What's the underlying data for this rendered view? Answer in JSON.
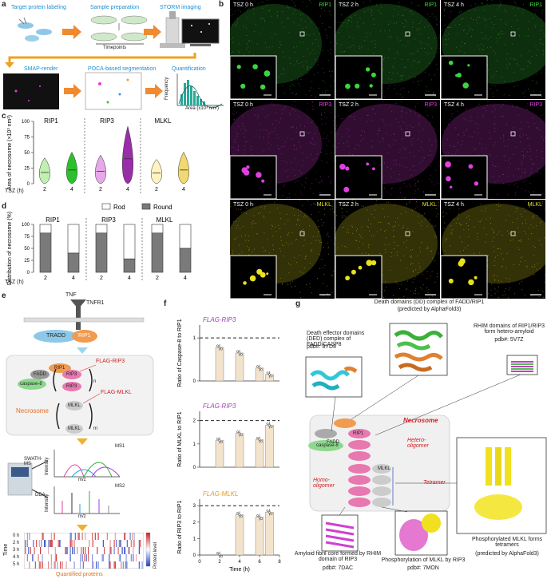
{
  "panel_labels": {
    "a": "a",
    "b": "b",
    "c": "c",
    "d": "d",
    "e": "e",
    "f": "f",
    "g": "g"
  },
  "panel_a": {
    "steps": [
      "Target protein labeling",
      "Sample preparation",
      "STORM imaging"
    ],
    "timepoints_label": "Timepoints",
    "steps2": [
      "SMAP-render",
      "POCA-based segmentation",
      "Quantification"
    ],
    "hist_ylabel": "Frequency",
    "hist_xlabel": "Area (x10³ nm²)"
  },
  "panel_b": {
    "rows": [
      {
        "protein": "RIP1",
        "color": "#3fd43f",
        "times": [
          "TSZ 0 h",
          "TSZ 2 h",
          "TSZ 4 h"
        ]
      },
      {
        "protein": "RIP3",
        "color": "#e040e0",
        "times": [
          "TSZ 0 h",
          "TSZ 2 h",
          "TSZ 4 h"
        ]
      },
      {
        "protein": "MLKL",
        "color": "#e8e020",
        "times": [
          "TSZ 0 h",
          "TSZ 2 h",
          "TSZ 4 h"
        ]
      }
    ]
  },
  "chart_data": [
    {
      "type": "violin",
      "ylabel": "Area of necrosome (×10³ nm²)",
      "xlabel": "TSZ (h)",
      "groups": [
        "RIP1",
        "RIP3",
        "MLKL"
      ],
      "categories": [
        "2",
        "4",
        "2",
        "4",
        "2",
        "4"
      ],
      "yticks": [
        "0",
        "25",
        "50",
        "75",
        "100"
      ],
      "ylim": [
        0,
        100
      ],
      "series": [
        {
          "group": "RIP1",
          "time": "2",
          "median": 18,
          "color": "#bff0b0"
        },
        {
          "group": "RIP1",
          "time": "4",
          "median": 22,
          "color": "#2cc12c"
        },
        {
          "group": "RIP3",
          "time": "2",
          "median": 20,
          "color": "#e6a8ea"
        },
        {
          "group": "RIP3",
          "time": "4",
          "median": 40,
          "color": "#9a2ea8"
        },
        {
          "group": "MLKL",
          "time": "2",
          "median": 17,
          "color": "#fff4c0"
        },
        {
          "group": "MLKL",
          "time": "4",
          "median": 22,
          "color": "#f2d870"
        }
      ]
    },
    {
      "type": "bar",
      "ylabel": "Distribution of necrosome (%)",
      "xlabel": "TSZ (h)",
      "legend": [
        "Rod",
        "Round"
      ],
      "groups": [
        "RIP1",
        "RIP3",
        "MLKL"
      ],
      "categories": [
        "2",
        "4",
        "2",
        "4",
        "2",
        "4"
      ],
      "yticks": [
        "0",
        "25",
        "50",
        "75",
        "100"
      ],
      "ylim": [
        0,
        100
      ],
      "series": [
        {
          "name": "Round",
          "values": [
            82,
            40,
            82,
            28,
            82,
            50
          ]
        },
        {
          "name": "Rod",
          "values": [
            18,
            60,
            18,
            72,
            18,
            50
          ]
        }
      ]
    },
    {
      "type": "bar",
      "title": "FLAG-RIP3",
      "ylabel": "Ratio of Caspase-8 to RIP1",
      "yticks": [
        "0",
        "1"
      ],
      "ylim": [
        0,
        1.3
      ],
      "ref": 1,
      "x": [
        2,
        4,
        6,
        7
      ],
      "values": [
        0.78,
        0.65,
        0.3,
        0.15
      ]
    },
    {
      "type": "bar",
      "title": "FLAG-RIP3",
      "ylabel": "Ratio of MLKL to RIP1",
      "yticks": [
        "0",
        "1",
        "2"
      ],
      "ylim": [
        0,
        2.4
      ],
      "ref": 2,
      "x": [
        2,
        4,
        6,
        7
      ],
      "values": [
        1.15,
        1.45,
        1.18,
        1.8
      ]
    },
    {
      "type": "bar",
      "title": "FLAG-MLKL",
      "ylabel": "Ratio of RIP3 to RIP1",
      "xlabel": "Time (h)",
      "xticks": [
        "0",
        "2",
        "4",
        "6",
        "8"
      ],
      "yticks": [
        "0",
        "1",
        "2",
        "3"
      ],
      "ylim": [
        0,
        3.4
      ],
      "ref": 3,
      "x": [
        2,
        4,
        6,
        7
      ],
      "values": [
        0.02,
        2.45,
        2.3,
        2.6
      ]
    }
  ],
  "panel_e": {
    "tnf": "TNF",
    "tnfr1": "TNFR1",
    "tradd": "TRADD",
    "rip1": "RIP1",
    "fadd": "FADD",
    "caspase": "caspase-8",
    "rip3": "RIP3",
    "mlkl": "MLKL",
    "flag_rip3": "FLAG-RIP3",
    "flag_mlkl": "FLAG-MLKL",
    "necrosome": "Necrosome",
    "n": "n",
    "m": "m",
    "swath": "SWATH-MS",
    "dda": "DDA",
    "ms1": "MS1",
    "ms2": "MS2",
    "intensity": "Intensity",
    "mz": "m/z",
    "time_label": "Time",
    "times": [
      "0 h",
      "2 h",
      "3 h",
      "4 h",
      "5 h"
    ],
    "protein_level": "Protein level",
    "quantified": "Quantified proteins"
  },
  "panel_g": {
    "dd_title": "Death domains (DD) complex of FADD/RIP1",
    "dd_sub": "(predicted by AlphaFold3)",
    "ded_title": "Death effector domains (DED) complex of FADD/CASP8",
    "ded_pdb": "pdb#: 8YD8",
    "rhim_title": "RHIM domains of RIP1/RIP3 form hetero-amyloid",
    "rhim_pdb": "pdb#: 5V7Z",
    "necrosome": "Necrosome",
    "hetero": "Hetero-oligomer",
    "homo": "Homo-oligomer",
    "tetramer": "Tetramer",
    "amyloid_title": "Amyloid fibril core formed by RHIM domain of RIP3",
    "amyloid_pdb": "pdb#: 7DAC",
    "phos_title": "Phosphorylation of MLKL by RIP3",
    "phos_pdb": "pdb#: 7MON",
    "tetra_title": "Phosphorylated MLKL forms tetramers",
    "tetra_sub": "(predicted by AlphaFold3)"
  }
}
